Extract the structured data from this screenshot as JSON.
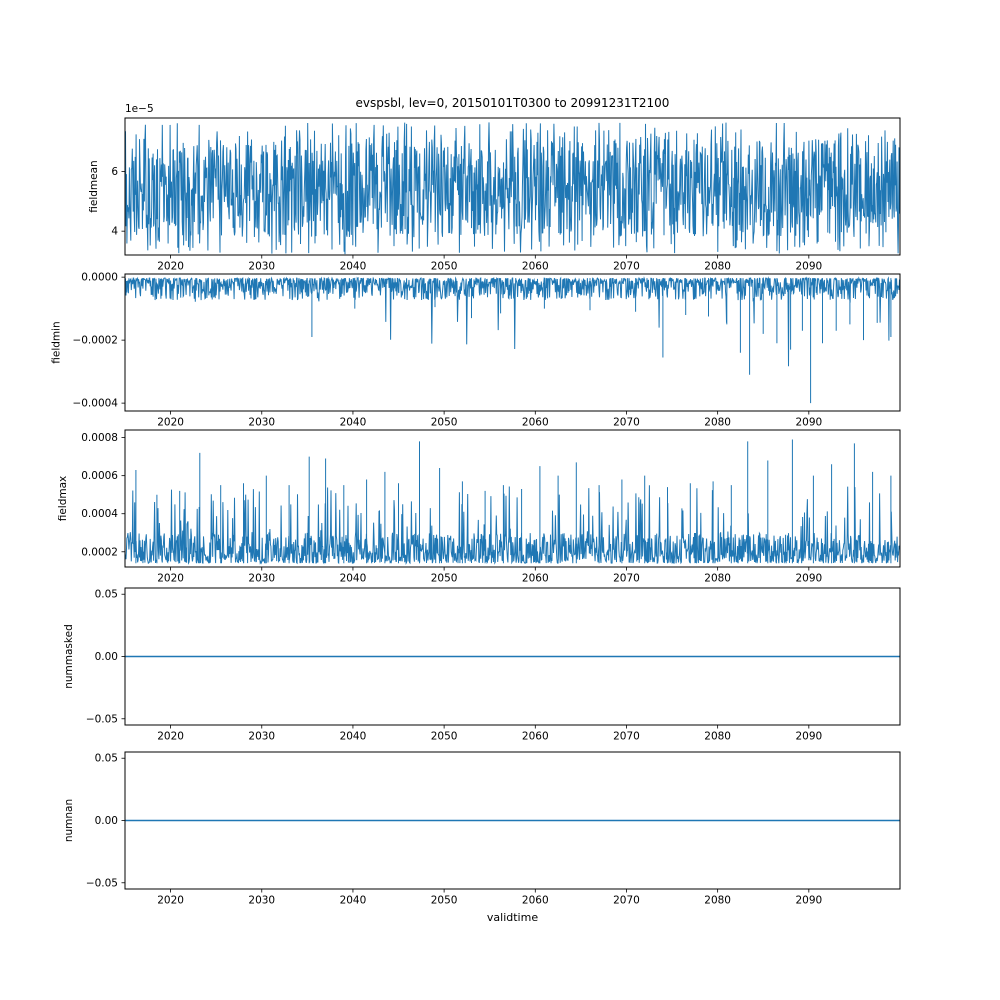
{
  "figure": {
    "title": "evspsbl, lev=0, 20150101T0300 to 20991231T2100",
    "xlabel": "validtime",
    "background": "#ffffff",
    "line_color": "#1f77b4",
    "axis_color": "#000000",
    "xlim": [
      2015,
      2100
    ],
    "xticks": [
      {
        "v": 2020,
        "label": "2020"
      },
      {
        "v": 2030,
        "label": "2030"
      },
      {
        "v": 2040,
        "label": "2040"
      },
      {
        "v": 2050,
        "label": "2050"
      },
      {
        "v": 2060,
        "label": "2060"
      },
      {
        "v": 2070,
        "label": "2070"
      },
      {
        "v": 2080,
        "label": "2080"
      },
      {
        "v": 2090,
        "label": "2090"
      }
    ]
  },
  "chart_data": [
    {
      "name": "fieldmean",
      "type": "line",
      "ylabel": "fieldmean",
      "offset_text": "1e−5",
      "ylim": [
        3.2e-05,
        7.8e-05
      ],
      "yticks": [
        {
          "v": 4e-05,
          "label": "4"
        },
        {
          "v": 6e-05,
          "label": "6"
        }
      ],
      "signal": {
        "kind": "noise",
        "anchor": 3.8e-05,
        "span": 3.3e-05,
        "skew": 1,
        "spike": {
          "prob": 0.05,
          "from": 7.1e-05,
          "span": 6e-06,
          "growth": 0
        },
        "spike2": {
          "prob": 0.05,
          "from": 3.7e-05,
          "span": -5e-06,
          "growth": 0
        }
      },
      "events": []
    },
    {
      "name": "fieldmin",
      "type": "line",
      "ylabel": "fieldmin",
      "offset_text": null,
      "ylim": [
        -0.000425,
        1e-05
      ],
      "yticks": [
        {
          "v": 0.0,
          "label": "0.0000"
        },
        {
          "v": -0.0002,
          "label": "−0.0002"
        },
        {
          "v": -0.0004,
          "label": "−0.0004"
        }
      ],
      "signal": {
        "kind": "noise",
        "anchor": -3e-06,
        "span": -7e-05,
        "skew": 2,
        "spike": {
          "prob": 0.015,
          "from": -6e-05,
          "span": -0.00012,
          "growth": 1.2
        }
      },
      "events": [
        [
          2035.5,
          -0.00019
        ],
        [
          2040.2,
          -0.0001
        ],
        [
          2049.0,
          -9.5e-05
        ],
        [
          2053.0,
          -0.00013
        ],
        [
          2056.2,
          -0.000115
        ],
        [
          2061.0,
          -0.0001
        ],
        [
          2066.0,
          -0.000105
        ],
        [
          2071.0,
          -0.00011
        ],
        [
          2074.0,
          -0.000255
        ],
        [
          2076.5,
          -0.00012
        ],
        [
          2079.0,
          -0.000125
        ],
        [
          2081.0,
          -0.00015
        ],
        [
          2082.5,
          -0.00024
        ],
        [
          2083.5,
          -0.00031
        ],
        [
          2085.0,
          -0.00018
        ],
        [
          2086.5,
          -0.00021
        ],
        [
          2088.0,
          -0.00023
        ],
        [
          2089.3,
          -0.00017
        ],
        [
          2090.2,
          -0.0004
        ],
        [
          2091.5,
          -0.00021
        ],
        [
          2093.0,
          -0.00017
        ],
        [
          2094.5,
          -0.00015
        ],
        [
          2096.0,
          -0.0002
        ],
        [
          2097.5,
          -0.000145
        ],
        [
          2099.0,
          -0.00019
        ]
      ]
    },
    {
      "name": "fieldmax",
      "type": "line",
      "ylabel": "fieldmax",
      "offset_text": null,
      "ylim": [
        0.00012,
        0.00084
      ],
      "yticks": [
        {
          "v": 0.0002,
          "label": "0.0002"
        },
        {
          "v": 0.0004,
          "label": "0.0004"
        },
        {
          "v": 0.0006,
          "label": "0.0006"
        },
        {
          "v": 0.0008,
          "label": "0.0008"
        }
      ],
      "signal": {
        "kind": "noise",
        "anchor": 0.00014,
        "span": 0.00016,
        "skew": 1.6,
        "spike": {
          "prob": 0.08,
          "from": 0.00028,
          "span": 0.00025,
          "growth": 0.2
        }
      },
      "events": [
        [
          2016.2,
          0.00063
        ],
        [
          2018.5,
          0.0005
        ],
        [
          2021.0,
          0.00052
        ],
        [
          2023.2,
          0.00072
        ],
        [
          2025.5,
          0.00055
        ],
        [
          2028.0,
          0.00056
        ],
        [
          2030.5,
          0.0006
        ],
        [
          2033.0,
          0.00055
        ],
        [
          2035.2,
          0.0007
        ],
        [
          2037.0,
          0.00069
        ],
        [
          2039.0,
          0.00055
        ],
        [
          2041.5,
          0.00058
        ],
        [
          2043.5,
          0.00062
        ],
        [
          2045.0,
          0.00056
        ],
        [
          2047.3,
          0.00078
        ],
        [
          2049.5,
          0.00064
        ],
        [
          2052.0,
          0.00057
        ],
        [
          2054.5,
          0.00052
        ],
        [
          2056.5,
          0.00055
        ],
        [
          2058.5,
          0.00053
        ],
        [
          2060.5,
          0.00065
        ],
        [
          2062.5,
          0.0006
        ],
        [
          2064.5,
          0.00067
        ],
        [
          2067.0,
          0.00055
        ],
        [
          2069.5,
          0.00058
        ],
        [
          2072.0,
          0.0006
        ],
        [
          2074.5,
          0.00054
        ],
        [
          2077.0,
          0.00056
        ],
        [
          2079.5,
          0.00057
        ],
        [
          2081.5,
          0.00055
        ],
        [
          2083.3,
          0.00078
        ],
        [
          2085.5,
          0.00068
        ],
        [
          2088.2,
          0.00079
        ],
        [
          2090.5,
          0.0006
        ],
        [
          2092.5,
          0.00066
        ],
        [
          2095.0,
          0.00077
        ],
        [
          2097.0,
          0.00062
        ],
        [
          2099.0,
          0.0006
        ]
      ]
    },
    {
      "name": "nummasked",
      "type": "line",
      "ylabel": "nummasked",
      "offset_text": null,
      "ylim": [
        -0.055,
        0.055
      ],
      "yticks": [
        {
          "v": 0.05,
          "label": "0.05"
        },
        {
          "v": 0.0,
          "label": "0.00"
        },
        {
          "v": -0.05,
          "label": "−0.05"
        }
      ],
      "signal": {
        "kind": "flat",
        "value": 0
      },
      "events": []
    },
    {
      "name": "numnan",
      "type": "line",
      "ylabel": "numnan",
      "offset_text": null,
      "ylim": [
        -0.055,
        0.055
      ],
      "yticks": [
        {
          "v": 0.05,
          "label": "0.05"
        },
        {
          "v": 0.0,
          "label": "0.00"
        },
        {
          "v": -0.05,
          "label": "−0.05"
        }
      ],
      "signal": {
        "kind": "flat",
        "value": 0
      },
      "events": []
    }
  ]
}
